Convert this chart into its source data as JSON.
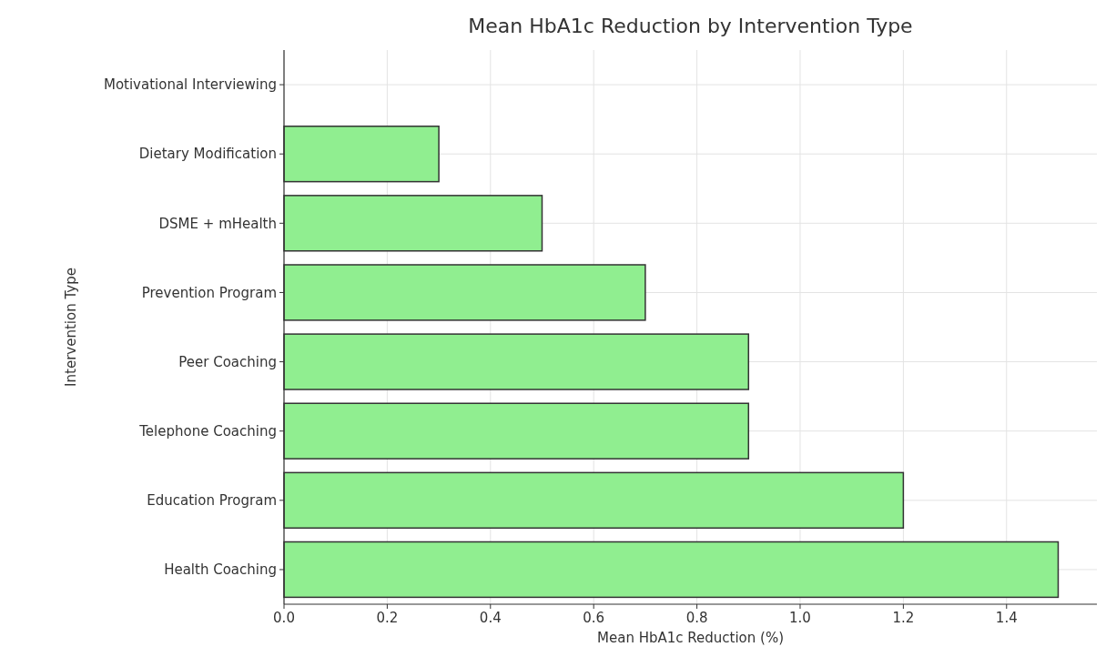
{
  "chart_data": {
    "type": "bar",
    "orientation": "horizontal",
    "title": "Mean HbA1c Reduction by Intervention Type",
    "xlabel": "Mean HbA1c Reduction (%)",
    "ylabel": "Intervention Type",
    "categories": [
      "Motivational Interviewing",
      "Dietary Modification",
      "DSME + mHealth",
      "Prevention Program",
      "Peer Coaching",
      "Telephone Coaching",
      "Education Program",
      "Health Coaching"
    ],
    "values": [
      0,
      0.3,
      0.5,
      0.7,
      0.9,
      0.9,
      1.2,
      1.5
    ],
    "color": "#90ee90",
    "xlim": [
      0,
      1.575
    ],
    "xticks": [
      {
        "value": 0,
        "label": "0.0"
      },
      {
        "value": 0.2,
        "label": "0.2"
      },
      {
        "value": 0.4,
        "label": "0.4"
      },
      {
        "value": 0.6,
        "label": "0.6"
      },
      {
        "value": 0.8,
        "label": "0.8"
      },
      {
        "value": 1,
        "label": "1.0"
      },
      {
        "value": 1.2,
        "label": "1.2"
      },
      {
        "value": 1.4,
        "label": "1.4"
      }
    ],
    "grid": true
  }
}
